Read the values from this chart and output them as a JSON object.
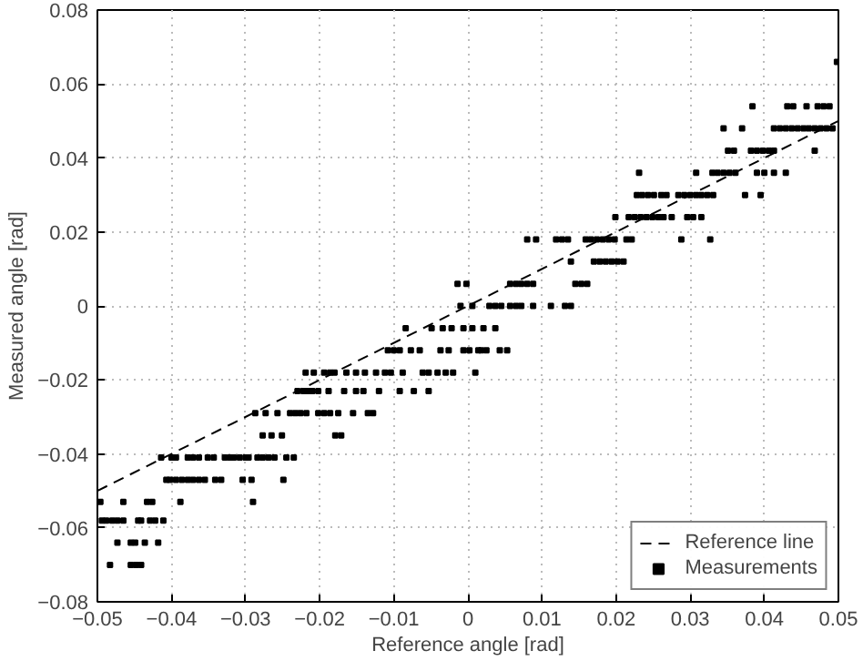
{
  "chart_data": {
    "type": "scatter",
    "xlabel": "Reference angle [rad]",
    "ylabel": "Measured angle [rad]",
    "xlim": [
      -0.05,
      0.05
    ],
    "ylim": [
      -0.08,
      0.08
    ],
    "xticks": [
      -0.05,
      -0.04,
      -0.03,
      -0.02,
      -0.01,
      0,
      0.01,
      0.02,
      0.03,
      0.04,
      0.05
    ],
    "yticks": [
      -0.08,
      -0.06,
      -0.04,
      -0.02,
      0,
      0.02,
      0.04,
      0.06,
      0.08
    ],
    "grid": true,
    "legend": "bottom right",
    "series": [
      {
        "name": "Reference line",
        "type": "line",
        "line_style": "dashed",
        "marker": "none",
        "color": "#000000",
        "x": [
          -0.05,
          0.05
        ],
        "values": [
          -0.05,
          0.05
        ]
      },
      {
        "name": "Measurements",
        "marker": "square",
        "color": "#000000",
        "x": [
          -0.0483,
          -0.0455,
          -0.0448,
          -0.0441,
          -0.0473,
          -0.0455,
          -0.0449,
          -0.0436,
          -0.0418,
          -0.0494,
          -0.0488,
          -0.048,
          -0.0473,
          -0.0465,
          -0.0445,
          -0.0441,
          -0.0429,
          -0.0422,
          -0.0411,
          -0.0496,
          -0.0465,
          -0.0433,
          -0.0426,
          -0.0388,
          -0.029,
          -0.0407,
          -0.0402,
          -0.0394,
          -0.0386,
          -0.0378,
          -0.0371,
          -0.0363,
          -0.0355,
          -0.0341,
          -0.0333,
          -0.0304,
          -0.0292,
          -0.0249,
          -0.0414,
          -0.04,
          -0.0394,
          -0.0378,
          -0.0371,
          -0.0363,
          -0.0351,
          -0.0343,
          -0.0328,
          -0.0321,
          -0.0316,
          -0.0308,
          -0.03,
          -0.0296,
          -0.0284,
          -0.0277,
          -0.0269,
          -0.0261,
          -0.0245,
          -0.0235,
          -0.0277,
          -0.0265,
          -0.0251,
          -0.0179,
          -0.0171,
          -0.0287,
          -0.0273,
          -0.0257,
          -0.024,
          -0.0233,
          -0.0226,
          -0.0218,
          -0.0202,
          -0.0194,
          -0.0186,
          -0.0175,
          -0.0155,
          -0.0135,
          -0.0128,
          -0.023,
          -0.0222,
          -0.0216,
          -0.021,
          -0.0202,
          -0.0188,
          -0.0167,
          -0.0151,
          -0.0141,
          -0.012,
          -0.0092,
          -0.0073,
          -0.0053,
          -0.0219,
          -0.0208,
          -0.0194,
          -0.0186,
          -0.018,
          -0.0164,
          -0.0151,
          -0.0139,
          -0.0124,
          -0.0112,
          -0.0104,
          -0.0088,
          -0.0061,
          -0.0053,
          -0.0041,
          -0.003,
          -0.002,
          0.001,
          -0.0108,
          -0.01,
          -0.0092,
          -0.0077,
          -0.0065,
          -0.0037,
          -0.0026,
          -0.0006,
          0.0002,
          0.0014,
          0.0018,
          0.0025,
          0.0043,
          0.0053,
          -0.0084,
          -0.0049,
          -0.0034,
          -0.0022,
          -0.0006,
          0.0006,
          0.0021,
          0.0037,
          -0.001,
          0.0006,
          0.0029,
          0.0037,
          0.0045,
          0.0057,
          0.0065,
          0.0072,
          0.0088,
          0.0112,
          0.0131,
          0.0139,
          -0.0014,
          -0.0002,
          0.0057,
          0.0065,
          0.0072,
          0.008,
          0.0088,
          0.0145,
          0.0153,
          0.0161,
          0.0139,
          0.017,
          0.0178,
          0.0186,
          0.0194,
          0.0202,
          0.021,
          0.008,
          0.0092,
          0.0119,
          0.0127,
          0.0135,
          0.0159,
          0.0166,
          0.0174,
          0.0182,
          0.019,
          0.0198,
          0.0214,
          0.0221,
          0.0288,
          0.0327,
          0.0199,
          0.0217,
          0.0225,
          0.0233,
          0.0241,
          0.0249,
          0.0257,
          0.0264,
          0.0275,
          0.0296,
          0.0304,
          0.0315,
          0.0228,
          0.0235,
          0.0243,
          0.0251,
          0.0261,
          0.0268,
          0.0284,
          0.0292,
          0.03,
          0.0308,
          0.0315,
          0.0323,
          0.0331,
          0.0374,
          0.0395,
          0.0231,
          0.0308,
          0.033,
          0.0337,
          0.0345,
          0.0353,
          0.0361,
          0.039,
          0.04,
          0.0413,
          0.0429,
          0.0351,
          0.0359,
          0.0382,
          0.039,
          0.0398,
          0.0406,
          0.0413,
          0.0468,
          0.0345,
          0.037,
          0.0413,
          0.0421,
          0.0429,
          0.0437,
          0.0445,
          0.0453,
          0.046,
          0.0468,
          0.0476,
          0.0484,
          0.0492,
          0.0384,
          0.0431,
          0.0439,
          0.0457,
          0.0472,
          0.048,
          0.0488,
          0.0498
        ],
        "values": [
          -0.07,
          -0.07,
          -0.07,
          -0.07,
          -0.064,
          -0.064,
          -0.064,
          -0.064,
          -0.064,
          -0.058,
          -0.058,
          -0.058,
          -0.058,
          -0.058,
          -0.058,
          -0.058,
          -0.058,
          -0.058,
          -0.058,
          -0.053,
          -0.053,
          -0.053,
          -0.053,
          -0.053,
          -0.053,
          -0.047,
          -0.047,
          -0.047,
          -0.047,
          -0.047,
          -0.047,
          -0.047,
          -0.047,
          -0.047,
          -0.047,
          -0.047,
          -0.047,
          -0.047,
          -0.041,
          -0.041,
          -0.041,
          -0.041,
          -0.041,
          -0.041,
          -0.041,
          -0.041,
          -0.041,
          -0.041,
          -0.041,
          -0.041,
          -0.041,
          -0.041,
          -0.041,
          -0.041,
          -0.041,
          -0.041,
          -0.041,
          -0.041,
          -0.035,
          -0.035,
          -0.035,
          -0.035,
          -0.035,
          -0.029,
          -0.029,
          -0.029,
          -0.029,
          -0.029,
          -0.029,
          -0.029,
          -0.029,
          -0.029,
          -0.029,
          -0.029,
          -0.029,
          -0.029,
          -0.029,
          -0.023,
          -0.023,
          -0.023,
          -0.023,
          -0.023,
          -0.023,
          -0.023,
          -0.023,
          -0.023,
          -0.023,
          -0.023,
          -0.023,
          -0.023,
          -0.018,
          -0.018,
          -0.018,
          -0.018,
          -0.018,
          -0.018,
          -0.018,
          -0.018,
          -0.018,
          -0.018,
          -0.018,
          -0.018,
          -0.018,
          -0.018,
          -0.018,
          -0.018,
          -0.018,
          -0.018,
          -0.012,
          -0.012,
          -0.012,
          -0.012,
          -0.012,
          -0.012,
          -0.012,
          -0.012,
          -0.012,
          -0.012,
          -0.012,
          -0.012,
          -0.012,
          -0.012,
          -0.006,
          -0.006,
          -0.006,
          -0.006,
          -0.006,
          -0.006,
          -0.006,
          -0.006,
          0,
          0,
          0,
          0,
          0,
          0,
          0,
          0,
          0,
          0,
          0,
          0,
          0.006,
          0.006,
          0.006,
          0.006,
          0.006,
          0.006,
          0.006,
          0.006,
          0.006,
          0.006,
          0.012,
          0.012,
          0.012,
          0.012,
          0.012,
          0.012,
          0.012,
          0.018,
          0.018,
          0.018,
          0.018,
          0.018,
          0.018,
          0.018,
          0.018,
          0.018,
          0.018,
          0.018,
          0.018,
          0.018,
          0.018,
          0.018,
          0.024,
          0.024,
          0.024,
          0.024,
          0.024,
          0.024,
          0.024,
          0.024,
          0.024,
          0.024,
          0.024,
          0.024,
          0.03,
          0.03,
          0.03,
          0.03,
          0.03,
          0.03,
          0.03,
          0.03,
          0.03,
          0.03,
          0.03,
          0.03,
          0.03,
          0.03,
          0.03,
          0.036,
          0.036,
          0.036,
          0.036,
          0.036,
          0.036,
          0.036,
          0.036,
          0.036,
          0.036,
          0.036,
          0.042,
          0.042,
          0.042,
          0.042,
          0.042,
          0.042,
          0.042,
          0.042,
          0.048,
          0.048,
          0.048,
          0.048,
          0.048,
          0.048,
          0.048,
          0.048,
          0.048,
          0.048,
          0.048,
          0.048,
          0.048,
          0.054,
          0.054,
          0.054,
          0.054,
          0.054,
          0.054,
          0.054,
          0.066
        ]
      }
    ]
  }
}
